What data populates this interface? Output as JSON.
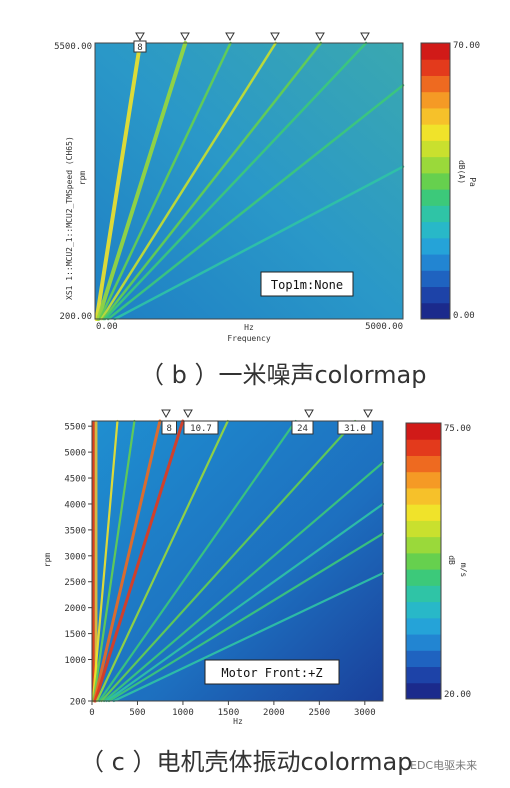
{
  "chart_data": [
    {
      "type": "heatmap",
      "panel": "b",
      "xlabel": "Frequency",
      "xunit": "Hz",
      "ylabel": "XS1 1::MCU2_1::MCU2_TMSpeed (CH65)",
      "yunit": "rpm",
      "xlim": [
        0,
        5000
      ],
      "ylim": [
        200,
        5500
      ],
      "x_ticks": [
        "0.00",
        "5000.00"
      ],
      "y_ticks": [
        "5500.00",
        "200.00"
      ],
      "colorbar": {
        "min": 0,
        "max": 70,
        "min_label": "0.00",
        "max_label": "70.00",
        "unit": "dB(A)",
        "unit2": "Pa"
      },
      "order_markers": [
        "8"
      ],
      "order_marker_count": 6,
      "annotation": "Top1m:None",
      "orders": [
        8,
        16,
        24,
        32,
        40,
        48,
        64,
        96
      ]
    },
    {
      "type": "heatmap",
      "panel": "c",
      "xunit": "Hz",
      "yunit": "rpm",
      "xlim": [
        0,
        3200
      ],
      "ylim": [
        200,
        5600
      ],
      "x_ticks": [
        0,
        500,
        1000,
        1500,
        2000,
        2500,
        3000
      ],
      "y_ticks": [
        200,
        1000,
        1500,
        2000,
        2500,
        3000,
        3500,
        4000,
        4500,
        5000,
        5500
      ],
      "colorbar": {
        "min": 20,
        "max": 75,
        "min_label": "20.00",
        "max_label": "75.00",
        "unit": "dB",
        "unit2": "m/s"
      },
      "order_markers": [
        "8",
        "10.7",
        "24",
        "31.0"
      ],
      "annotation": "Motor Front:+Z",
      "orders": [
        3,
        5,
        8,
        10.7,
        16,
        24,
        31,
        40,
        48,
        56,
        72
      ]
    }
  ],
  "captions": {
    "b": "（ b ）一米噪声colormap",
    "c": "（ c ）电机壳体振动colormap"
  },
  "watermark": "EDC电驱未来"
}
